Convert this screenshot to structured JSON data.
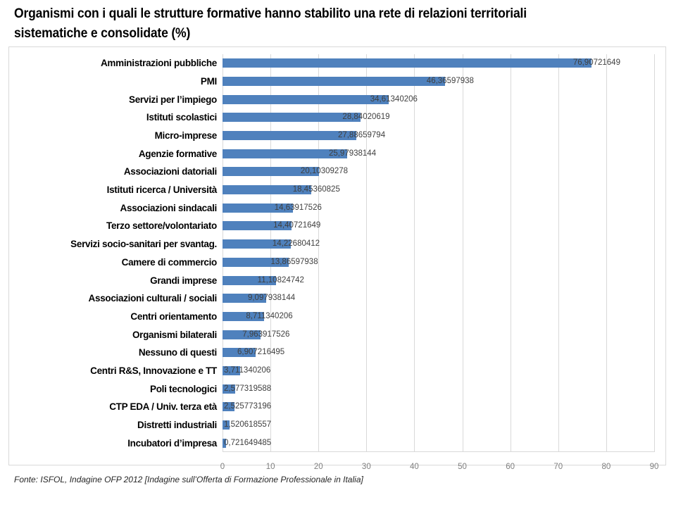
{
  "page": {
    "title": "Organismi con i quali le strutture formative hanno stabilito una rete di relazioni territoriali sistematiche e consolidate (%)",
    "title_lines": [
      "Organismi con i quali le strutture formative hanno stabilito una rete di relazioni territoriali",
      "sistematiche e consolidate (%)"
    ]
  },
  "footer": {
    "text": "Fonte: ISFOL, Indagine OFP 2012 [Indagine sull’Offerta di Formazione Professionale in Italia]"
  },
  "colors": {
    "bar": "#4f81bd",
    "gridline": "#d9d9d9",
    "axis_text": "#808080",
    "value_text": "#3f3f3f",
    "frame_border": "#d9d9d9"
  },
  "chart_data": {
    "type": "bar",
    "orientation": "horizontal",
    "title": "Organismi con i quali le strutture formative hanno stabilito una rete di relazioni territoriali sistematiche e consolidate (%)",
    "xlabel": "",
    "ylabel": "",
    "unit": "%",
    "xlim": [
      0,
      90
    ],
    "xticks": [
      0,
      10,
      20,
      30,
      40,
      50,
      60,
      70,
      80,
      90
    ],
    "grid": "vertical-major",
    "legend": "none",
    "categories": [
      "Amministrazioni pubbliche",
      "PMI",
      "Servizi per l’impiego",
      "Istituti scolastici",
      "Micro-imprese",
      "Agenzie formative",
      "Associazioni datoriali",
      "Istituti ricerca / Università",
      "Associazioni sindacali",
      "Terzo settore/volontariato",
      "Servizi socio-sanitari per svantag.",
      "Camere di commercio",
      "Grandi imprese",
      "Associazioni culturali / sociali",
      "Centri orientamento",
      "Organismi bilaterali",
      "Nessuno di questi",
      "Centri R&S, Innovazione e TT",
      "Poli tecnologici",
      "CTP EDA / Univ. terza età",
      "Distretti industriali",
      "Incubatori d’impresa"
    ],
    "values": [
      76.90721649,
      46.36597938,
      34.61340206,
      28.84020619,
      27.88659794,
      25.97938144,
      20.10309278,
      18.45360825,
      14.63917526,
      14.40721649,
      14.22680412,
      13.86597938,
      11.10824742,
      9.097938144,
      8.711340206,
      7.963917526,
      6.907216495,
      3.711340206,
      2.577319588,
      2.525773196,
      1.520618557,
      0.721649485
    ],
    "value_labels": [
      "76,90721649",
      "46,36597938",
      "34,61340206",
      "28,84020619",
      "27,88659794",
      "25,97938144",
      "20,10309278",
      "18,45360825",
      "14,63917526",
      "14,40721649",
      "14,22680412",
      "13,86597938",
      "11,10824742",
      "9,097938144",
      "8,711340206",
      "7,963917526",
      "6,907216495",
      "3,711340206",
      "2,577319588",
      "2,525773196",
      "1,520618557",
      "0,721649485"
    ],
    "source": "Fonte: ISFOL, Indagine OFP 2012 [Indagine sull’Offerta di Formazione Professionale in Italia]"
  }
}
